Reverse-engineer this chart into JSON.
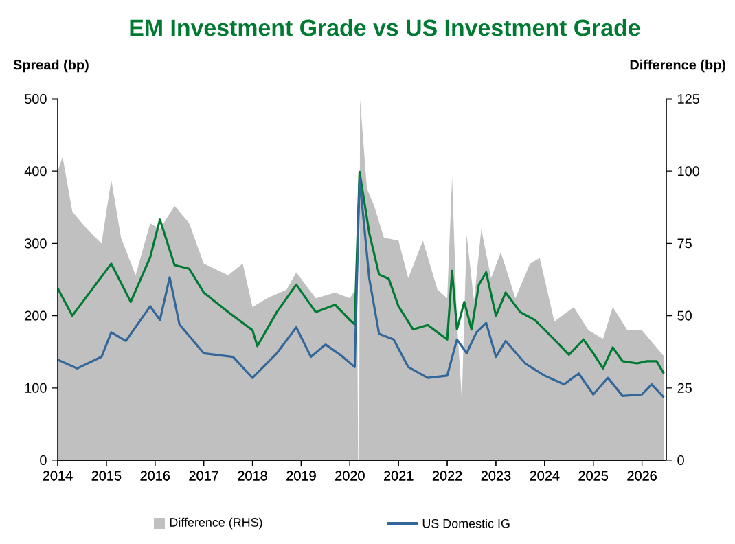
{
  "chart_data": {
    "type": "line",
    "title": "EM Investment Grade vs US Investment Grade",
    "ylabel": "Spread (bp)",
    "y2label": "Difference (bp)",
    "legend": "bottom",
    "xlim": [
      2014,
      2026.5
    ],
    "xticks": [
      2014,
      2015,
      2016,
      2017,
      2018,
      2019,
      2020,
      2021,
      2022,
      2023,
      2024,
      2025,
      2026
    ],
    "ylim": [
      0,
      500
    ],
    "yticks": [
      0,
      100,
      200,
      300,
      400,
      500
    ],
    "y2lim": [
      0,
      125
    ],
    "y2ticks": [
      0,
      25,
      50,
      75,
      100,
      125
    ],
    "series": [
      {
        "name": "Difference (RHS)",
        "type": "area",
        "axis": "y2",
        "color": "#c0c0c0",
        "x": [
          2014.0,
          2014.1,
          2014.3,
          2014.6,
          2014.9,
          2015.1,
          2015.3,
          2015.6,
          2015.9,
          2016.1,
          2016.4,
          2016.7,
          2017.0,
          2017.5,
          2017.8,
          2018.0,
          2018.3,
          2018.7,
          2018.9,
          2019.3,
          2019.7,
          2020.0,
          2020.15,
          2020.17,
          2020.19,
          2020.21,
          2020.35,
          2020.5,
          2020.7,
          2021.0,
          2021.2,
          2021.5,
          2021.8,
          2022.0,
          2022.1,
          2022.2,
          2022.3,
          2022.4,
          2022.55,
          2022.7,
          2022.9,
          2023.1,
          2023.4,
          2023.7,
          2023.9,
          2024.2,
          2024.6,
          2024.9,
          2025.2,
          2025.4,
          2025.7,
          2026.0,
          2026.3,
          2026.45
        ],
        "values": [
          100,
          105,
          86,
          80,
          75,
          97,
          77,
          64,
          82,
          80,
          88,
          82,
          68,
          64,
          68,
          53,
          56,
          59,
          65,
          56,
          58,
          56,
          60,
          0,
          0,
          125,
          94,
          88,
          77,
          76,
          63,
          76,
          59,
          56,
          98,
          48,
          21,
          78,
          55,
          80,
          63,
          72,
          56,
          68,
          70,
          48,
          53,
          45,
          42,
          53,
          45,
          45,
          39,
          36
        ]
      },
      {
        "color": "#007a33",
        "x": [
          2014.0,
          2014.3,
          2015.1,
          2015.5,
          2015.9,
          2016.1,
          2016.4,
          2016.7,
          2017.0,
          2017.5,
          2018.0,
          2018.1,
          2018.5,
          2018.9,
          2019.3,
          2019.7,
          2020.0,
          2020.1,
          2020.2,
          2020.4,
          2020.6,
          2020.8,
          2021.0,
          2021.3,
          2021.6,
          2022.0,
          2022.1,
          2022.2,
          2022.35,
          2022.5,
          2022.65,
          2022.8,
          2023.0,
          2023.2,
          2023.5,
          2023.8,
          2024.2,
          2024.5,
          2024.8,
          2025.0,
          2025.2,
          2025.4,
          2025.6,
          2025.9,
          2026.1,
          2026.3,
          2026.45
        ],
        "values": [
          238,
          200,
          272,
          219,
          281,
          333,
          270,
          265,
          232,
          205,
          180,
          158,
          205,
          243,
          205,
          215,
          194,
          188,
          399,
          314,
          257,
          251,
          213,
          181,
          187,
          167,
          262,
          181,
          219,
          181,
          243,
          260,
          200,
          232,
          205,
          194,
          167,
          146,
          167,
          148,
          127,
          156,
          137,
          134,
          137,
          137,
          120
        ]
      },
      {
        "name": "US Domestic IG",
        "color": "#336699",
        "x": [
          2014.0,
          2014.4,
          2014.9,
          2015.1,
          2015.4,
          2015.9,
          2016.1,
          2016.3,
          2016.5,
          2017.0,
          2017.6,
          2018.0,
          2018.5,
          2018.9,
          2019.2,
          2019.5,
          2019.8,
          2020.1,
          2020.2,
          2020.4,
          2020.6,
          2020.9,
          2021.2,
          2021.6,
          2022.0,
          2022.2,
          2022.4,
          2022.6,
          2022.8,
          2023.0,
          2023.2,
          2023.6,
          2024.0,
          2024.4,
          2024.7,
          2025.0,
          2025.3,
          2025.6,
          2026.0,
          2026.2,
          2026.45
        ],
        "values": [
          139,
          127,
          143,
          177,
          165,
          213,
          194,
          253,
          188,
          148,
          143,
          114,
          148,
          184,
          143,
          160,
          146,
          129,
          390,
          251,
          175,
          167,
          129,
          114,
          117,
          167,
          148,
          177,
          190,
          143,
          165,
          134,
          117,
          105,
          120,
          91,
          114,
          89,
          91,
          105,
          87
        ]
      }
    ]
  }
}
